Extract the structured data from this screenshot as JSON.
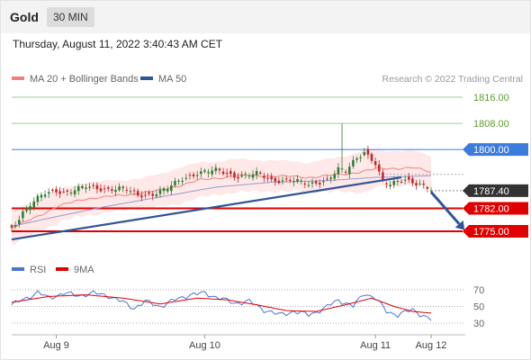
{
  "header": {
    "title": "Gold",
    "timeframe": "30 MIN"
  },
  "timestamp": "Thursday, August 11, 2022 3:40:43 AM CET",
  "legend": {
    "ma20_label": "MA 20 + Bollinger Bands",
    "ma50_label": "MA 50",
    "copyright": "Research © 2022 Trading Central"
  },
  "colors": {
    "up_candle": "#2f7d32",
    "down_candle": "#c62828",
    "ma20": "#f08080",
    "ma50": "#9a9acd",
    "bands": "#fde0e0",
    "trendline": "#2f5597",
    "resistance_green": "#9fd08f",
    "support_red": "#e00000",
    "pivot_blue": "#3b7bdc",
    "rsi": "#4a74d6",
    "rsi_ma": "#e00000"
  },
  "chart_data": [
    {
      "type": "candlestick",
      "instrument": "Gold",
      "timeframe": "30 MIN",
      "ylim": [
        1770,
        1822
      ],
      "y_ticks": [
        1816.0,
        1808.0,
        1800.0,
        1787.4,
        1782.0,
        1775.0
      ],
      "price_levels": [
        {
          "label": "1816.00",
          "value": 1816.0,
          "kind": "resistance"
        },
        {
          "label": "1808.00",
          "value": 1808.0,
          "kind": "resistance"
        },
        {
          "label": "1800.00",
          "value": 1800.0,
          "kind": "pivot"
        },
        {
          "label": "1782.00",
          "value": 1782.0,
          "kind": "support"
        },
        {
          "label": "1775.00",
          "value": 1775.0,
          "kind": "support"
        }
      ],
      "last_price": {
        "label": "1787.40",
        "value": 1787.4
      },
      "x_ticks": [
        {
          "label": "Aug 9",
          "index": 12
        },
        {
          "label": "Aug 10",
          "index": 52
        },
        {
          "label": "Aug 11",
          "index": 98
        },
        {
          "label": "Aug 12",
          "index": 113
        }
      ],
      "trendline": [
        {
          "index": 0,
          "value": 1772.5
        },
        {
          "index": 105,
          "value": 1791.5
        }
      ],
      "forecast_arrow": [
        {
          "index": 113,
          "value": 1787.0
        },
        {
          "index": 122,
          "value": 1775.4
        }
      ],
      "series": [
        {
          "name": "MA 20 + Bollinger Bands",
          "anchors": [
            [
              0,
              1776.0
            ],
            [
              6,
              1779.0
            ],
            [
              12,
              1782.5
            ],
            [
              20,
              1785.0
            ],
            [
              30,
              1786.0
            ],
            [
              40,
              1787.5
            ],
            [
              50,
              1790.5
            ],
            [
              60,
              1792.0
            ],
            [
              70,
              1792.0
            ],
            [
              80,
              1791.5
            ],
            [
              90,
              1792.5
            ],
            [
              98,
              1794.0
            ],
            [
              108,
              1794.5
            ],
            [
              113,
              1793.0
            ]
          ],
          "band_width_anchors": [
            [
              0,
              5.0
            ],
            [
              20,
              5.0
            ],
            [
              35,
              4.5
            ],
            [
              45,
              5.5
            ],
            [
              60,
              5.0
            ],
            [
              80,
              4.5
            ],
            [
              90,
              5.5
            ],
            [
              95,
              6.5
            ],
            [
              100,
              5.5
            ],
            [
              113,
              5.0
            ]
          ]
        },
        {
          "name": "MA 50",
          "anchors": [
            [
              0,
              1776.5
            ],
            [
              10,
              1779.0
            ],
            [
              25,
              1782.5
            ],
            [
              40,
              1785.5
            ],
            [
              55,
              1788.5
            ],
            [
              70,
              1790.0
            ],
            [
              85,
              1790.5
            ],
            [
              98,
              1791.5
            ],
            [
              113,
              1792.0
            ]
          ]
        }
      ],
      "candle_count": 114,
      "candle_path": [
        [
          0,
          1776.0
        ],
        [
          3,
          1781.0
        ],
        [
          6,
          1784.0
        ],
        [
          9,
          1786.5
        ],
        [
          12,
          1787.5
        ],
        [
          15,
          1787.0
        ],
        [
          20,
          1788.5
        ],
        [
          25,
          1788.0
        ],
        [
          30,
          1788.0
        ],
        [
          34,
          1786.0
        ],
        [
          38,
          1786.5
        ],
        [
          42,
          1788.0
        ],
        [
          46,
          1791.0
        ],
        [
          50,
          1793.0
        ],
        [
          55,
          1793.5
        ],
        [
          60,
          1792.0
        ],
        [
          66,
          1792.5
        ],
        [
          70,
          1790.5
        ],
        [
          75,
          1791.0
        ],
        [
          80,
          1789.0
        ],
        [
          85,
          1791.0
        ],
        [
          88,
          1794.0
        ],
        [
          90,
          1793.0
        ],
        [
          92,
          1796.0
        ],
        [
          95,
          1799.5
        ],
        [
          98,
          1796.0
        ],
        [
          100,
          1790.0
        ],
        [
          102,
          1789.0
        ],
        [
          106,
          1791.0
        ],
        [
          110,
          1789.5
        ],
        [
          113,
          1787.4
        ]
      ],
      "wick_spikes": [
        {
          "index": 89,
          "high": 1808.0
        }
      ]
    },
    {
      "type": "line",
      "legend": [
        "RSI",
        "9MA"
      ],
      "y_ticks": [
        70,
        50,
        30
      ],
      "ylim": [
        20,
        80
      ],
      "series": [
        {
          "name": "RSI",
          "anchors": [
            [
              0,
              52
            ],
            [
              4,
              60
            ],
            [
              7,
              67
            ],
            [
              10,
              60
            ],
            [
              14,
              66
            ],
            [
              18,
              63
            ],
            [
              22,
              66
            ],
            [
              26,
              63
            ],
            [
              30,
              55
            ],
            [
              33,
              48
            ],
            [
              36,
              56
            ],
            [
              40,
              50
            ],
            [
              44,
              58
            ],
            [
              48,
              64
            ],
            [
              52,
              66
            ],
            [
              56,
              60
            ],
            [
              60,
              54
            ],
            [
              64,
              56
            ],
            [
              68,
              46
            ],
            [
              72,
              40
            ],
            [
              76,
              44
            ],
            [
              80,
              40
            ],
            [
              84,
              47
            ],
            [
              88,
              58
            ],
            [
              92,
              50
            ],
            [
              95,
              66
            ],
            [
              98,
              60
            ],
            [
              101,
              44
            ],
            [
              104,
              40
            ],
            [
              108,
              46
            ],
            [
              113,
              34
            ]
          ]
        },
        {
          "name": "9MA",
          "anchors": [
            [
              0,
              55
            ],
            [
              10,
              62
            ],
            [
              20,
              64
            ],
            [
              30,
              60
            ],
            [
              40,
              53
            ],
            [
              50,
              60
            ],
            [
              58,
              58
            ],
            [
              66,
              52
            ],
            [
              74,
              45
            ],
            [
              82,
              44
            ],
            [
              90,
              52
            ],
            [
              97,
              60
            ],
            [
              103,
              50
            ],
            [
              108,
              44
            ],
            [
              113,
              42
            ]
          ]
        }
      ]
    }
  ]
}
